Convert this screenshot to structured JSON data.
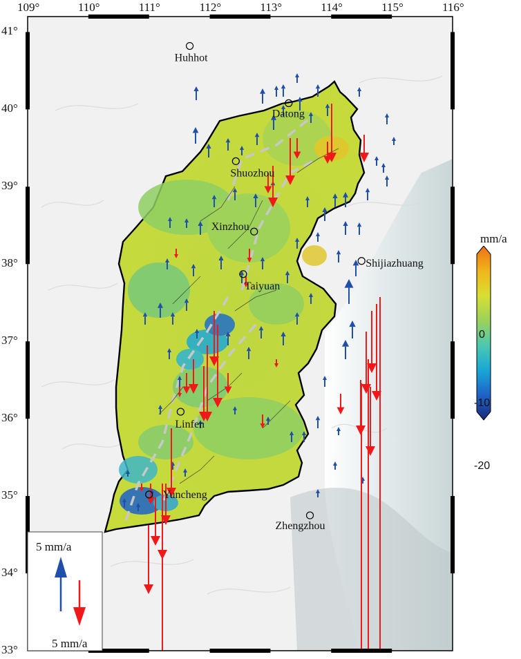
{
  "map": {
    "lon_ticks": [
      "109°",
      "110°",
      "111°",
      "112°",
      "113°",
      "114°",
      "115°",
      "116°"
    ],
    "lat_ticks": [
      "41°",
      "40°",
      "39°",
      "38°",
      "37°",
      "36°",
      "35°",
      "34°",
      "33°"
    ],
    "cities": [
      {
        "name": "Huhhot",
        "lon": 111.67,
        "lat": 40.82
      },
      {
        "name": "Datong",
        "lon": 113.3,
        "lat": 40.08
      },
      {
        "name": "Shuozhou",
        "lon": 112.43,
        "lat": 39.33
      },
      {
        "name": "Xinzhou",
        "lon": 112.73,
        "lat": 38.42
      },
      {
        "name": "Taiyuan",
        "lon": 112.55,
        "lat": 37.87
      },
      {
        "name": "Shijiazhuang",
        "lon": 114.5,
        "lat": 38.04
      },
      {
        "name": "Linfen",
        "lon": 111.52,
        "lat": 36.09
      },
      {
        "name": "Yuncheng",
        "lon": 111.0,
        "lat": 35.02
      },
      {
        "name": "Zhengzhou",
        "lon": 113.65,
        "lat": 34.75
      }
    ],
    "colors": {
      "uplift_arrow": "#1f4fa8",
      "subsidence_arrow": "#f01818",
      "fault_zone": "#c8c8c8"
    }
  },
  "legend": {
    "up_label": "5 mm/a",
    "down_label": "5 mm/a"
  },
  "colorbar": {
    "unit": "mm/a",
    "min": -20,
    "max": 5,
    "ticks": [
      "0",
      "-10",
      "-20"
    ],
    "tick_values": [
      0,
      -10,
      -20
    ],
    "stops": [
      "#1a2a7a",
      "#1e63c8",
      "#19a7d6",
      "#4cc8b0",
      "#9bd25c",
      "#d8df33",
      "#f0b51c",
      "#ef6f16"
    ]
  }
}
